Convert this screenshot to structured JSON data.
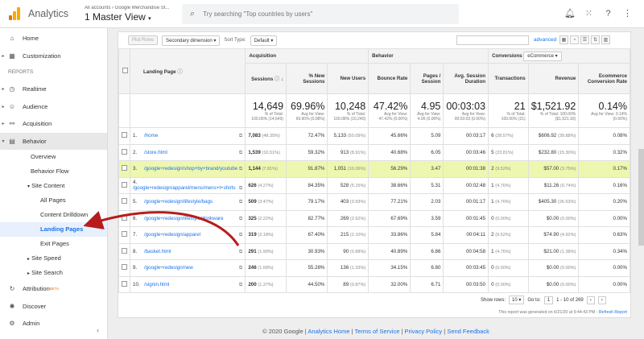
{
  "header": {
    "app_name": "Analytics",
    "breadcrumb": "All accounts › Google Merchandise St...",
    "view": "1 Master View",
    "search_placeholder": "Try searching \"Top countries by users\"",
    "logo_colors": [
      "#f9ab00",
      "#e37400"
    ]
  },
  "sidebar": {
    "top": [
      {
        "label": "Home",
        "icon": "home-icon",
        "glyph": "⌂"
      },
      {
        "label": "Customization",
        "icon": "grid-icon",
        "glyph": "▦"
      }
    ],
    "section": "REPORTS",
    "reports": [
      {
        "label": "Realtime",
        "icon": "clock-icon",
        "glyph": "◷"
      },
      {
        "label": "Audience",
        "icon": "person-icon",
        "glyph": "☺"
      },
      {
        "label": "Acquisition",
        "icon": "acquisition-icon",
        "glyph": "⚯"
      },
      {
        "label": "Behavior",
        "icon": "behavior-icon",
        "glyph": "▤"
      }
    ],
    "behavior_sub": [
      "Overview",
      "Behavior Flow"
    ],
    "site_content": "Site Content",
    "site_content_items": [
      "All Pages",
      "Content Drilldown",
      "Landing Pages",
      "Exit Pages"
    ],
    "site_speed": "Site Speed",
    "site_search": "Site Search",
    "bottom": [
      {
        "label": "Attribution",
        "badge": "BETA",
        "icon": "attribution-icon",
        "glyph": "↻"
      },
      {
        "label": "Discover",
        "icon": "lightbulb-icon",
        "glyph": "✺"
      },
      {
        "label": "Admin",
        "icon": "gear-icon",
        "glyph": "⚙"
      }
    ]
  },
  "toolbar": {
    "plot_rows": "Plot Rows",
    "secondary_dimension": "Secondary dimension",
    "sort_type_label": "Sort Type:",
    "sort_type": "Default",
    "advanced": "advanced"
  },
  "table": {
    "groups": {
      "acquisition": "Acquisition",
      "behavior": "Behavior",
      "conversions": "Conversions",
      "goal": "eCommerce"
    },
    "columns": {
      "landing_page": "Landing Page",
      "sessions": "Sessions",
      "new_sessions": "% New Sessions",
      "new_users": "New Users",
      "bounce_rate": "Bounce Rate",
      "pages_session": "Pages / Session",
      "avg_duration": "Avg. Session Duration",
      "transactions": "Transactions",
      "revenue": "Revenue",
      "conv_rate": "Ecommerce Conversion Rate"
    },
    "totals": [
      {
        "value": "14,649",
        "sub": "% of Total: 100.00% (14,649)"
      },
      {
        "value": "69.96%",
        "sub": "Avg for View: 69.90% (0.08%)"
      },
      {
        "value": "10,248",
        "sub": "% of Total: 100.08% (10,240)"
      },
      {
        "value": "47.42%",
        "sub": "Avg for View: 47.42% (0.00%)"
      },
      {
        "value": "4.95",
        "sub": "Avg for View: 4.95 (0.00%)"
      },
      {
        "value": "00:03:03",
        "sub": "Avg for View: 00:03:03 (0.00%)"
      },
      {
        "value": "21",
        "sub": "% of Total: 100.00% (21)"
      },
      {
        "value": "$1,521.92",
        "sub": "% of Total: 100.00% ($1,521.92)"
      },
      {
        "value": "0.14%",
        "sub": "Avg for View: 0.14% (0.00%)"
      }
    ],
    "rows": [
      {
        "n": "1.",
        "page": "/home",
        "sessions": "7,083",
        "sp": "(48.35%)",
        "new_sess": "72.47%",
        "new_users": "5,133",
        "np": "(50.09%)",
        "bounce": "45.66%",
        "pps": "5.09",
        "dur": "00:03:17",
        "tr": "6",
        "tp": "(28.57%)",
        "rev": "$606.92",
        "rp": "(39.88%)",
        "conv": "0.08%"
      },
      {
        "n": "2.",
        "page": "/store.html",
        "sessions": "1,539",
        "sp": "(10.51%)",
        "new_sess": "59.32%",
        "new_users": "913",
        "np": "(8.91%)",
        "bounce": "40.68%",
        "pps": "6.05",
        "dur": "00:03:46",
        "tr": "5",
        "tp": "(23.81%)",
        "rev": "$232.80",
        "rp": "(15.30%)",
        "conv": "0.32%"
      },
      {
        "n": "3.",
        "page": "/google+redesign/shop+by+brand/youtube",
        "sessions": "1,144",
        "sp": "(7.81%)",
        "new_sess": "91.87%",
        "new_users": "1,051",
        "np": "(10.26%)",
        "bounce": "56.29%",
        "pps": "3.47",
        "dur": "00:01:38",
        "tr": "2",
        "tp": "(9.52%)",
        "rev": "$57.00",
        "rp": "(3.75%)",
        "conv": "0.17%"
      },
      {
        "n": "4.",
        "page": "/google+redesign/apparel/mens/mens+t+shirts",
        "sessions": "626",
        "sp": "(4.27%)",
        "new_sess": "84.35%",
        "new_users": "528",
        "np": "(5.15%)",
        "bounce": "38.66%",
        "pps": "5.31",
        "dur": "00:02:48",
        "tr": "1",
        "tp": "(4.76%)",
        "rev": "$11.26",
        "rp": "(0.74%)",
        "conv": "0.16%"
      },
      {
        "n": "5.",
        "page": "/google+redesign/lifestyle/bags",
        "sessions": "509",
        "sp": "(3.47%)",
        "new_sess": "79.17%",
        "new_users": "403",
        "np": "(3.93%)",
        "bounce": "77.21%",
        "pps": "2.03",
        "dur": "00:01:17",
        "tr": "1",
        "tp": "(4.76%)",
        "rev": "$405.30",
        "rp": "(26.63%)",
        "conv": "0.20%"
      },
      {
        "n": "6.",
        "page": "/google+redesign/lifestyle/drinkware",
        "sessions": "325",
        "sp": "(2.22%)",
        "new_sess": "82.77%",
        "new_users": "269",
        "np": "(2.62%)",
        "bounce": "67.69%",
        "pps": "3.59",
        "dur": "00:01:45",
        "tr": "0",
        "tp": "(0.00%)",
        "rev": "$0.00",
        "rp": "(0.00%)",
        "conv": "0.00%"
      },
      {
        "n": "7.",
        "page": "/google+redesign/apparel",
        "sessions": "319",
        "sp": "(2.18%)",
        "new_sess": "67.40%",
        "new_users": "215",
        "np": "(2.10%)",
        "bounce": "33.86%",
        "pps": "5.84",
        "dur": "00:04:11",
        "tr": "2",
        "tp": "(9.52%)",
        "rev": "$74.90",
        "rp": "(4.92%)",
        "conv": "0.63%"
      },
      {
        "n": "8.",
        "page": "/basket.html",
        "sessions": "291",
        "sp": "(1.99%)",
        "new_sess": "30.93%",
        "new_users": "90",
        "np": "(0.88%)",
        "bounce": "40.89%",
        "pps": "6.86",
        "dur": "00:04:58",
        "tr": "1",
        "tp": "(4.76%)",
        "rev": "$21.00",
        "rp": "(1.38%)",
        "conv": "0.34%"
      },
      {
        "n": "9.",
        "page": "/google+redesign/new",
        "sessions": "246",
        "sp": "(1.68%)",
        "new_sess": "55.28%",
        "new_users": "136",
        "np": "(1.33%)",
        "bounce": "34.15%",
        "pps": "6.80",
        "dur": "00:03:45",
        "tr": "0",
        "tp": "(0.00%)",
        "rev": "$0.00",
        "rp": "(0.00%)",
        "conv": "0.00%"
      },
      {
        "n": "10.",
        "page": "/signin.html",
        "sessions": "200",
        "sp": "(1.37%)",
        "new_sess": "44.50%",
        "new_users": "89",
        "np": "(0.87%)",
        "bounce": "32.00%",
        "pps": "6.71",
        "dur": "00:03:50",
        "tr": "0",
        "tp": "(0.00%)",
        "rev": "$0.00",
        "rp": "(0.00%)",
        "conv": "0.00%"
      }
    ]
  },
  "pager": {
    "show_rows_label": "Show rows:",
    "rows": "10",
    "goto_label": "Go to:",
    "goto": "1",
    "range": "1 - 10 of 269"
  },
  "generated": "This report was generated on 6/21/20 at 9:44:43 PM -",
  "refresh": "Refresh Report",
  "footer": {
    "copyright": "© 2020 Google",
    "links": [
      "Analytics Home",
      "Terms of Service",
      "Privacy Policy",
      "Send Feedback"
    ]
  },
  "colors": {
    "highlight_row": "#eef7b0",
    "link": "#1a73e8",
    "arrow": "#b71c1c"
  }
}
